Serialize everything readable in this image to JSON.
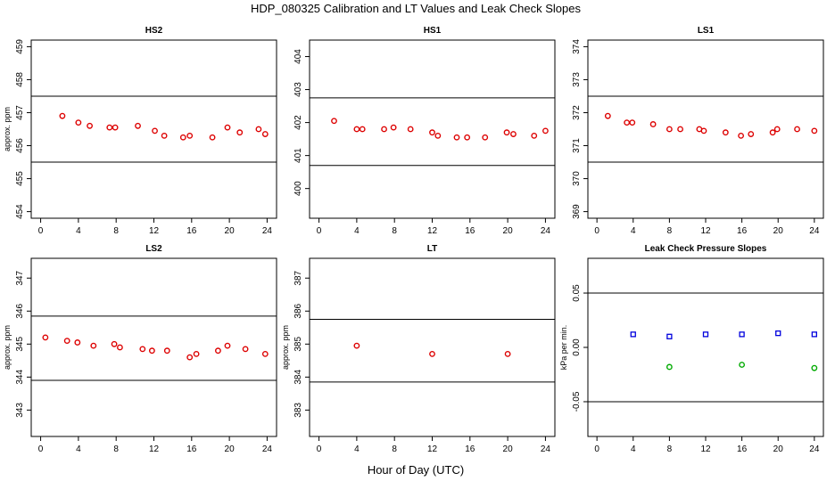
{
  "figure": {
    "title": "HDP_080325  Calibration and LT Values and Leak Check Slopes",
    "xlabel": "Hour of Day (UTC)"
  },
  "chart_data": [
    {
      "type": "scatter",
      "title": "HS2",
      "ylabel": "approx. ppm",
      "xlim": [
        -1,
        25
      ],
      "ylim": [
        453.8,
        459.2
      ],
      "xticks": [
        0,
        4,
        8,
        12,
        16,
        20,
        24
      ],
      "yticks": [
        454,
        455,
        456,
        457,
        458,
        459
      ],
      "hlines": [
        455.5,
        457.5
      ],
      "series": [
        {
          "color": "#dd0000",
          "x": [
            2.3,
            4.0,
            5.2,
            7.3,
            7.9,
            10.3,
            12.1,
            13.1,
            15.1,
            15.8,
            18.2,
            19.8,
            21.1,
            23.1,
            23.8
          ],
          "y": [
            456.9,
            456.7,
            456.6,
            456.55,
            456.55,
            456.6,
            456.45,
            456.3,
            456.25,
            456.3,
            456.25,
            456.55,
            456.4,
            456.5,
            456.35
          ]
        }
      ]
    },
    {
      "type": "scatter",
      "title": "HS1",
      "ylabel": "",
      "xlim": [
        -1,
        25
      ],
      "ylim": [
        399.1,
        404.5
      ],
      "xticks": [
        0,
        4,
        8,
        12,
        16,
        20,
        24
      ],
      "yticks": [
        400,
        401,
        402,
        403,
        404
      ],
      "hlines": [
        400.7,
        402.75
      ],
      "series": [
        {
          "color": "#dd0000",
          "x": [
            1.6,
            4.0,
            4.6,
            6.9,
            7.9,
            9.7,
            12.0,
            12.6,
            14.6,
            15.7,
            17.6,
            19.9,
            20.6,
            22.8,
            24.0
          ],
          "y": [
            402.05,
            401.8,
            401.8,
            401.8,
            401.85,
            401.8,
            401.7,
            401.6,
            401.55,
            401.55,
            401.55,
            401.7,
            401.65,
            401.6,
            401.75
          ]
        }
      ]
    },
    {
      "type": "scatter",
      "title": "LS1",
      "ylabel": "",
      "xlim": [
        -1,
        25
      ],
      "ylim": [
        368.8,
        374.2
      ],
      "xticks": [
        0,
        4,
        8,
        12,
        16,
        20,
        24
      ],
      "yticks": [
        369,
        370,
        371,
        372,
        373,
        374
      ],
      "hlines": [
        370.5,
        372.5
      ],
      "series": [
        {
          "color": "#dd0000",
          "x": [
            1.2,
            3.3,
            3.9,
            6.2,
            8.0,
            9.2,
            11.3,
            11.8,
            14.2,
            15.9,
            17.0,
            19.4,
            19.9,
            22.1,
            24.0
          ],
          "y": [
            371.9,
            371.7,
            371.7,
            371.65,
            371.5,
            371.5,
            371.5,
            371.45,
            371.4,
            371.3,
            371.35,
            371.4,
            371.5,
            371.5,
            371.45
          ]
        }
      ]
    },
    {
      "type": "scatter",
      "title": "LS2",
      "ylabel": "approx. ppm",
      "xlim": [
        -1,
        25
      ],
      "ylim": [
        342.2,
        347.6
      ],
      "xticks": [
        0,
        4,
        8,
        12,
        16,
        20,
        24
      ],
      "yticks": [
        343,
        344,
        345,
        346,
        347
      ],
      "hlines": [
        343.9,
        345.85
      ],
      "series": [
        {
          "color": "#dd0000",
          "x": [
            0.5,
            2.8,
            3.9,
            5.6,
            7.8,
            8.4,
            10.8,
            11.8,
            13.4,
            15.8,
            16.5,
            18.8,
            19.8,
            21.7,
            23.8
          ],
          "y": [
            345.2,
            345.1,
            345.05,
            344.95,
            345.0,
            344.9,
            344.85,
            344.8,
            344.8,
            344.6,
            344.7,
            344.8,
            344.95,
            344.85,
            344.7
          ]
        }
      ]
    },
    {
      "type": "scatter",
      "title": "LT",
      "ylabel": "approx. ppm",
      "xlim": [
        -1,
        25
      ],
      "ylim": [
        382.2,
        387.6
      ],
      "xticks": [
        0,
        4,
        8,
        12,
        16,
        20,
        24
      ],
      "yticks": [
        383,
        384,
        385,
        386,
        387
      ],
      "hlines": [
        383.85,
        385.75
      ],
      "series": [
        {
          "color": "#dd0000",
          "x": [
            4.0,
            12.0,
            20.0
          ],
          "y": [
            384.95,
            384.7,
            384.7
          ]
        }
      ]
    },
    {
      "type": "scatter",
      "title": "Leak Check Pressure Slopes",
      "ylabel": "kPa per min.",
      "xlim": [
        -1,
        25
      ],
      "ylim": [
        -0.082,
        0.082
      ],
      "xticks": [
        0,
        4,
        8,
        12,
        16,
        20,
        24
      ],
      "yticks": [
        -0.05,
        0.0,
        0.05
      ],
      "ytick_labels": [
        "-0.05",
        "0.00",
        "0.05"
      ],
      "hlines": [
        -0.05,
        0.05
      ],
      "series": [
        {
          "color": "#0000dd",
          "marker": "square",
          "x": [
            4.0,
            8.0,
            12.0,
            16.0,
            20.0,
            24.0
          ],
          "y": [
            0.012,
            0.01,
            0.012,
            0.012,
            0.013,
            0.012
          ]
        },
        {
          "color": "#00aa00",
          "marker": "circle",
          "x": [
            8.0,
            16.0,
            24.0
          ],
          "y": [
            -0.018,
            -0.016,
            -0.019
          ]
        }
      ]
    }
  ]
}
